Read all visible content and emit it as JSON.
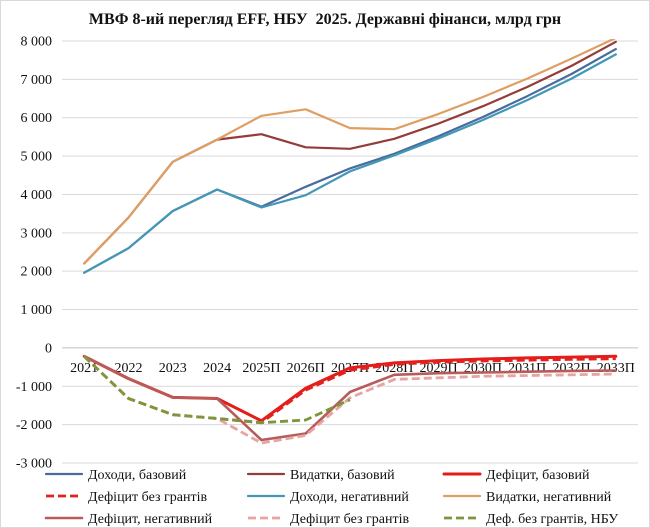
{
  "chart_data": {
    "type": "line",
    "title": "МВФ 8-ий перегляд EFF, НБУ  2025. Державні фінанси, млрд грн",
    "categories": [
      "2021",
      "2022",
      "2023",
      "2024",
      "2025П",
      "2026П",
      "2027П",
      "2028П",
      "2029П",
      "2030П",
      "2031П",
      "2032П",
      "2033П"
    ],
    "ylim": [
      -3000,
      8000
    ],
    "yticks": [
      {
        "value": 8000,
        "label": "8 000"
      },
      {
        "value": 7000,
        "label": "7 000"
      },
      {
        "value": 6000,
        "label": "6 000"
      },
      {
        "value": 5000,
        "label": "5 000"
      },
      {
        "value": 4000,
        "label": "4 000"
      },
      {
        "value": 3000,
        "label": "3 000"
      },
      {
        "value": 2000,
        "label": "2 000"
      },
      {
        "value": 1000,
        "label": "1 000"
      },
      {
        "value": 0,
        "label": "0"
      },
      {
        "value": -1000,
        "label": "-1 000"
      },
      {
        "value": -2000,
        "label": "-2 000"
      },
      {
        "value": -3000,
        "label": "-3 000"
      }
    ],
    "grid": true,
    "legend_position": "bottom",
    "series": [
      {
        "name": "Доходи, базовий",
        "color": "#4a6b9e",
        "values": [
          1960,
          2600,
          3570,
          4130,
          3680,
          4200,
          4680,
          5060,
          5520,
          6020,
          6560,
          7140,
          7790
        ]
      },
      {
        "name": "Видатки, базовий",
        "color": "#943c3a",
        "values": [
          2200,
          3400,
          4850,
          5430,
          5570,
          5230,
          5190,
          5450,
          5850,
          6300,
          6800,
          7350,
          7980
        ]
      },
      {
        "name": "Дефіцит, базовий",
        "color": "#e31d1a",
        "values": [
          -220,
          -800,
          -1290,
          -1320,
          -1900,
          -1050,
          -520,
          -390,
          -330,
          -290,
          -260,
          -240,
          -220
        ]
      },
      {
        "name": "Дефіцит без грантів",
        "color": "#e4211e",
        "values": [
          -220,
          -1320,
          -1740,
          -1840,
          -1950,
          -1100,
          -580,
          -430,
          -370,
          -340,
          -320,
          -300,
          -280
        ]
      },
      {
        "name": "Доходи, негативний",
        "color": "#4298b5",
        "values": [
          1960,
          2600,
          3570,
          4130,
          3660,
          3980,
          4600,
          5020,
          5460,
          5940,
          6460,
          7020,
          7650
        ]
      },
      {
        "name": "Видатки, негативний",
        "color": "#df9e62",
        "values": [
          2200,
          3400,
          4850,
          5430,
          6050,
          6220,
          5730,
          5700,
          6100,
          6540,
          7020,
          7540,
          8080
        ]
      },
      {
        "name": "Дефіцит, негативний",
        "color": "#b65c5a",
        "values": [
          -220,
          -800,
          -1290,
          -1320,
          -2400,
          -2230,
          -1150,
          -700,
          -660,
          -640,
          -620,
          -600,
          -590
        ]
      },
      {
        "name": "Дефіцит без грантів",
        "color": "#e6a4a2",
        "values": [
          -220,
          -1320,
          -1740,
          -1840,
          -2480,
          -2280,
          -1300,
          -820,
          -780,
          -740,
          -720,
          -700,
          -680
        ]
      },
      {
        "name": "Деф. без грантів, НБУ",
        "color": "#7c973a",
        "values": [
          -220,
          -1320,
          -1740,
          -1840,
          -1950,
          -1880,
          -1350,
          null,
          null,
          null,
          null,
          null,
          null
        ]
      }
    ]
  }
}
